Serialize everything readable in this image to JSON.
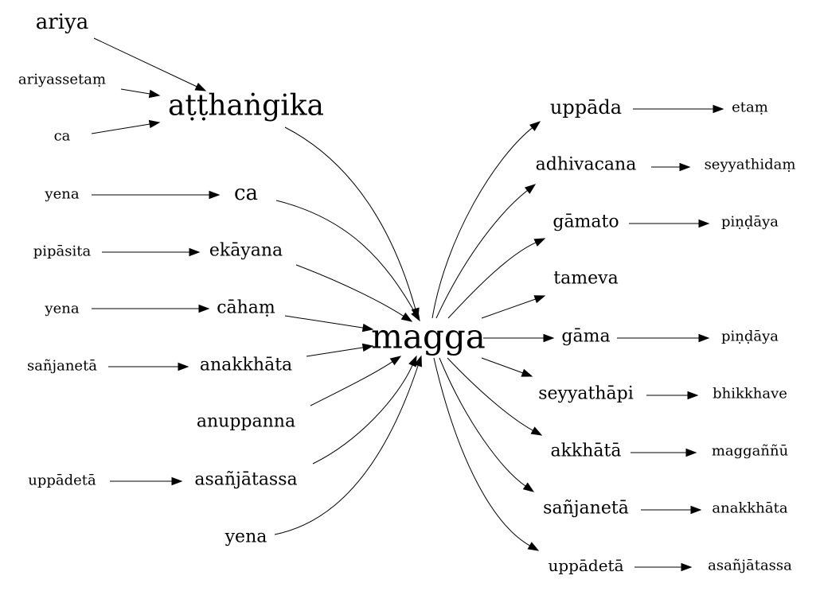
{
  "nodes": {
    "ariya": "ariya",
    "ariyassetam": "ariyassetaṃ",
    "ca_left": "ca",
    "atthangika": "aṭṭhaṅgika",
    "yena1": "yena",
    "ca_mid": "ca",
    "pipasita": "pipāsita",
    "ekayana": "ekāyana",
    "yena2": "yena",
    "caham": "cāhaṃ",
    "sanjaneta_left": "sañjanetā",
    "anakkhata_left": "anakkhāta",
    "anuppanna": "anuppanna",
    "uppadeta_left": "uppādetā",
    "asanjatassa_left": "asañjātassa",
    "yena3": "yena",
    "magga": "magga",
    "uppada": "uppāda",
    "etam": "etaṃ",
    "adhivacana": "adhivacana",
    "seyyathidam": "seyyathidaṃ",
    "gamato": "gāmato",
    "pindaya1": "piṇḍāya",
    "tameva": "tameva",
    "gama": "gāma",
    "pindaya2": "piṇḍāya",
    "seyyathapi": "seyyathāpi",
    "bhikkhave": "bhikkhave",
    "akkhata": "akkhātā",
    "magganu": "maggaññū",
    "sanjaneta_right": "sañjanetā",
    "anakkhata_right": "anakkhāta",
    "uppadeta_right": "uppādetā",
    "asanjatassa_right": "asañjātassa"
  },
  "edges": [
    [
      "ariya",
      "atthangika"
    ],
    [
      "ariyassetam",
      "atthangika"
    ],
    [
      "ca_left",
      "atthangika"
    ],
    [
      "atthangika",
      "magga"
    ],
    [
      "yena1",
      "ca_mid"
    ],
    [
      "ca_mid",
      "magga"
    ],
    [
      "pipasita",
      "ekayana"
    ],
    [
      "ekayana",
      "magga"
    ],
    [
      "yena2",
      "caham"
    ],
    [
      "caham",
      "magga"
    ],
    [
      "sanjaneta_left",
      "anakkhata_left"
    ],
    [
      "anakkhata_left",
      "magga"
    ],
    [
      "anuppanna",
      "magga"
    ],
    [
      "uppadeta_left",
      "asanjatassa_left"
    ],
    [
      "asanjatassa_left",
      "magga"
    ],
    [
      "yena3",
      "magga"
    ],
    [
      "magga",
      "uppada"
    ],
    [
      "uppada",
      "etam"
    ],
    [
      "magga",
      "adhivacana"
    ],
    [
      "adhivacana",
      "seyyathidam"
    ],
    [
      "magga",
      "gamato"
    ],
    [
      "gamato",
      "pindaya1"
    ],
    [
      "magga",
      "tameva"
    ],
    [
      "magga",
      "gama"
    ],
    [
      "gama",
      "pindaya2"
    ],
    [
      "magga",
      "seyyathapi"
    ],
    [
      "seyyathapi",
      "bhikkhave"
    ],
    [
      "magga",
      "akkhata"
    ],
    [
      "akkhata",
      "magganu"
    ],
    [
      "magga",
      "sanjaneta_right"
    ],
    [
      "sanjaneta_right",
      "anakkhata_right"
    ],
    [
      "magga",
      "uppadeta_right"
    ],
    [
      "uppadeta_right",
      "asanjatassa_right"
    ]
  ]
}
